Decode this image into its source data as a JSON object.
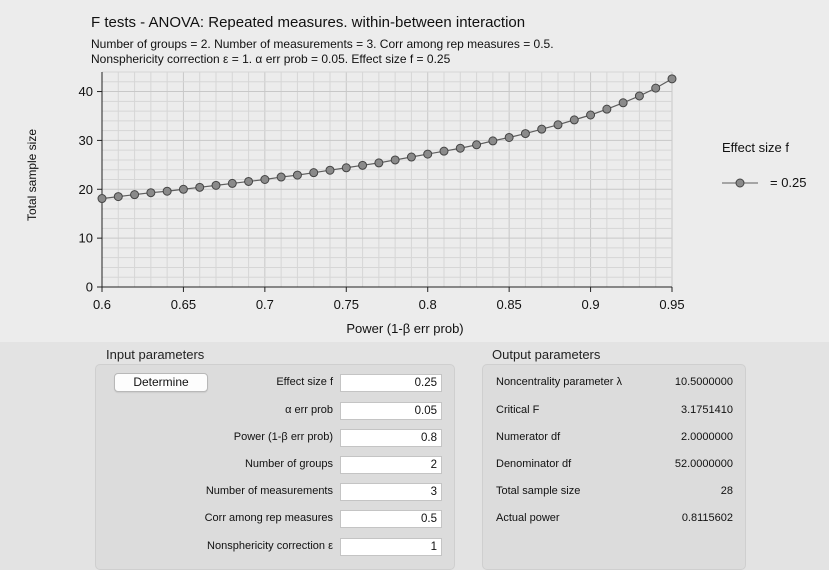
{
  "chart": {
    "title": "F tests - ANOVA: Repeated measures. within-between interaction",
    "subtitle_line1": "Number of groups = 2. Number of measurements = 3. Corr among rep measures = 0.5.",
    "subtitle_line2": "Nonsphericity correction ε = 1. α err prob = 0.05. Effect size f = 0.25",
    "legend_title": "Effect size f",
    "legend_label": "= 0.25",
    "marker_fill": "#8a8a8a",
    "line_color": "#5e5e5e"
  },
  "chart_data": {
    "type": "line",
    "xlabel": "Power (1-β err prob)",
    "ylabel": "Total sample size",
    "xlim": [
      0.6,
      0.95
    ],
    "ylim": [
      0,
      44
    ],
    "x_ticks": [
      "0.6",
      "0.65",
      "0.7",
      "0.75",
      "0.8",
      "0.85",
      "0.9",
      "0.95"
    ],
    "y_ticks": [
      "0",
      "10",
      "20",
      "30",
      "40"
    ],
    "grid": true,
    "legend_placement": "right",
    "series": [
      {
        "name": "= 0.25",
        "x": [
          0.6,
          0.61,
          0.62,
          0.63,
          0.64,
          0.65,
          0.66,
          0.67,
          0.68,
          0.69,
          0.7,
          0.71,
          0.72,
          0.73,
          0.74,
          0.75,
          0.76,
          0.77,
          0.78,
          0.79,
          0.8,
          0.81,
          0.82,
          0.83,
          0.84,
          0.85,
          0.86,
          0.87,
          0.88,
          0.89,
          0.9,
          0.91,
          0.92,
          0.93,
          0.94,
          0.95
        ],
        "y": [
          18.1,
          18.5,
          18.9,
          19.3,
          19.6,
          20.0,
          20.4,
          20.8,
          21.2,
          21.6,
          22.0,
          22.5,
          22.9,
          23.4,
          23.9,
          24.4,
          24.9,
          25.4,
          26.0,
          26.6,
          27.2,
          27.8,
          28.4,
          29.1,
          29.9,
          30.6,
          31.4,
          32.3,
          33.2,
          34.2,
          35.2,
          36.4,
          37.7,
          39.1,
          40.7,
          42.6
        ]
      }
    ]
  },
  "input": {
    "title": "Input parameters",
    "determine_label": "Determine",
    "rows": [
      {
        "label": "Effect size f",
        "value": "0.25"
      },
      {
        "label": "α err prob",
        "value": "0.05"
      },
      {
        "label": "Power (1-β err prob)",
        "value": "0.8"
      },
      {
        "label": "Number of groups",
        "value": "2"
      },
      {
        "label": "Number of measurements",
        "value": "3"
      },
      {
        "label": "Corr among rep measures",
        "value": "0.5"
      },
      {
        "label": "Nonsphericity correction ε",
        "value": "1"
      }
    ]
  },
  "output": {
    "title": "Output parameters",
    "rows": [
      {
        "label": "Noncentrality parameter λ",
        "value": "10.5000000"
      },
      {
        "label": "Critical F",
        "value": "3.1751410"
      },
      {
        "label": "Numerator df",
        "value": "2.0000000"
      },
      {
        "label": "Denominator df",
        "value": "52.0000000"
      },
      {
        "label": "Total sample size",
        "value": "28"
      },
      {
        "label": "Actual power",
        "value": "0.8115602"
      }
    ]
  }
}
